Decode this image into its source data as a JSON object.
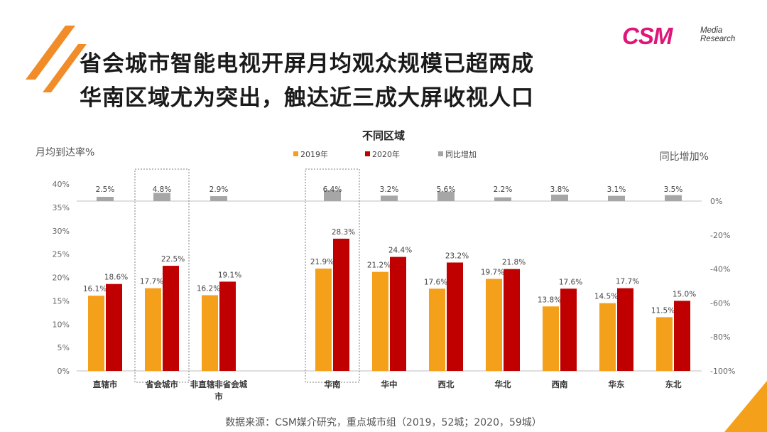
{
  "title_lines": [
    "省会城市智能电视开屏月均观众规模已超两成",
    "华南区域尤为突出，触达近三成大屏收视人口"
  ],
  "logo": {
    "main": "CSM",
    "sub_line1": "Media",
    "sub_line2": "Research"
  },
  "source_note": "数据来源：CSM媒介研究，重点城市组（2019，52城；2020，59城）",
  "colors": {
    "series_2019": "#f5a01a",
    "series_2020": "#c00000",
    "series_yoy": "#a6a6a6",
    "accent_stripe": "#f28c28",
    "logo": "#e0157a"
  },
  "chart_data": {
    "type": "bar",
    "title": "不同区域",
    "ylabel": "月均到达率%",
    "y2label": "同比增加%",
    "categories": [
      "直辖市",
      "省会城市",
      "非直辖非省会城市",
      "华南",
      "华中",
      "西北",
      "华北",
      "西南",
      "华东",
      "东北"
    ],
    "category_lines": [
      [
        "直辖市"
      ],
      [
        "省会城市"
      ],
      [
        "非直辖非省会城",
        "市"
      ],
      [
        "华南"
      ],
      [
        "华中"
      ],
      [
        "西北"
      ],
      [
        "华北"
      ],
      [
        "西南"
      ],
      [
        "华东"
      ],
      [
        "东北"
      ]
    ],
    "series": [
      {
        "name": "2019年",
        "axis": "left",
        "values": [
          16.1,
          17.7,
          16.2,
          21.9,
          21.2,
          17.6,
          19.7,
          13.8,
          14.5,
          11.5
        ]
      },
      {
        "name": "2020年",
        "axis": "left",
        "values": [
          18.6,
          22.5,
          19.1,
          28.3,
          24.4,
          23.2,
          21.8,
          17.6,
          17.7,
          15.0
        ]
      },
      {
        "name": "同比增加",
        "axis": "right",
        "values": [
          2.5,
          4.8,
          2.9,
          6.4,
          3.2,
          5.6,
          2.2,
          3.8,
          3.1,
          3.5
        ]
      }
    ],
    "ylim": [
      0,
      40
    ],
    "yticks": [
      0,
      5,
      10,
      15,
      20,
      25,
      30,
      35,
      40
    ],
    "ytick_labels": [
      "0%",
      "5%",
      "10%",
      "15%",
      "20%",
      "25%",
      "30%",
      "35%",
      "40%"
    ],
    "y2lim": [
      -100,
      0
    ],
    "y2ticks": [
      0,
      -20,
      -40,
      -60,
      -80,
      -100
    ],
    "y2tick_labels": [
      "0%",
      "-20%",
      "-40%",
      "-60%",
      "-80%",
      "-100%"
    ],
    "highlighted_categories": [
      "省会城市",
      "华南"
    ],
    "legend_position": "top-center",
    "grid": false
  }
}
